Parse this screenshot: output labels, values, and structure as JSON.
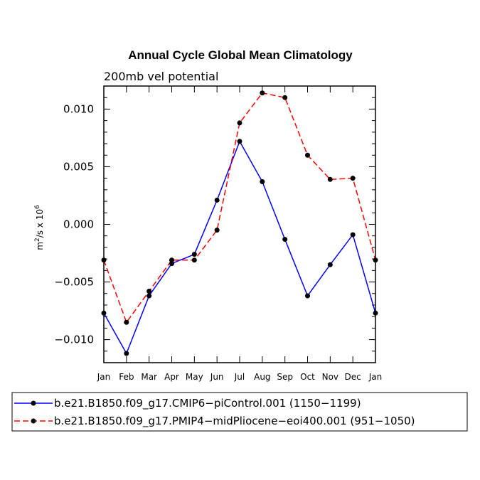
{
  "chart_data": {
    "type": "line",
    "title": "Annual Cycle Global Mean Climatology",
    "subtitle": "200mb vel potential",
    "ylabel_base": "m",
    "ylabel_sup1": "2",
    "ylabel_mid": "/s x 10",
    "ylabel_sup2": "6",
    "xlabel": "",
    "ylim": [
      -0.012,
      0.012
    ],
    "yticks": [
      -0.01,
      -0.005,
      0.0,
      0.005,
      0.01
    ],
    "ytick_labels": [
      "−0.010",
      "−0.005",
      "0.000",
      "0.005",
      "0.010"
    ],
    "categories": [
      "Jan",
      "Feb",
      "Mar",
      "Apr",
      "May",
      "Jun",
      "Jul",
      "Aug",
      "Sep",
      "Oct",
      "Nov",
      "Dec",
      "Jan"
    ],
    "series": [
      {
        "name": "b.e21.B1850.f09_g17.CMIP6−piControl.001 (1150−1199)",
        "color": "#0000ff",
        "dash": "solid",
        "values": [
          -0.0077,
          -0.0112,
          -0.0062,
          -0.0034,
          -0.0026,
          0.0021,
          0.0072,
          0.0037,
          -0.0013,
          -0.0062,
          -0.0035,
          -0.0009,
          -0.0077
        ]
      },
      {
        "name": "b.e21.B1850.f09_g17.PMIP4−midPliocene−eoi400.001 (951−1050)",
        "color": "#ff0000",
        "dash": "dashed",
        "values": [
          -0.0031,
          -0.0085,
          -0.0058,
          -0.0031,
          -0.0031,
          -0.0005,
          0.0088,
          0.0114,
          0.011,
          0.006,
          0.0039,
          0.004,
          -0.0031
        ]
      }
    ]
  }
}
